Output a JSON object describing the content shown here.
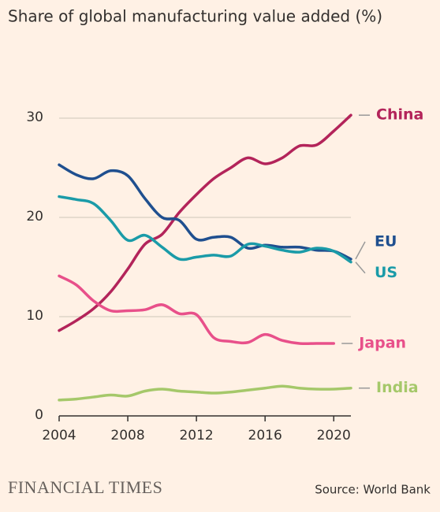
{
  "chart_data": {
    "type": "line",
    "title": "Share of global manufacturing value added (%)",
    "source": "Source: World Bank",
    "brand": "FINANCIAL TIMES",
    "x": [
      2004,
      2005,
      2006,
      2007,
      2008,
      2009,
      2010,
      2011,
      2012,
      2013,
      2014,
      2015,
      2016,
      2017,
      2018,
      2019,
      2020,
      2021
    ],
    "series": [
      {
        "name": "China",
        "color": "#b3245a",
        "values": [
          8.6,
          9.6,
          10.8,
          12.5,
          14.8,
          17.3,
          18.3,
          20.5,
          22.3,
          23.9,
          25.0,
          26.0,
          25.4,
          26.0,
          27.2,
          27.3,
          28.7,
          30.3
        ]
      },
      {
        "name": "EU",
        "color": "#1f4f8f",
        "values": [
          25.3,
          24.3,
          23.9,
          24.7,
          24.2,
          21.9,
          20.0,
          19.7,
          17.8,
          18.0,
          18.0,
          16.9,
          17.2,
          17.0,
          17.0,
          16.7,
          16.6,
          15.8
        ]
      },
      {
        "name": "US",
        "color": "#1a9ba8",
        "values": [
          22.1,
          21.8,
          21.4,
          19.7,
          17.7,
          18.2,
          17.0,
          15.8,
          16.0,
          16.2,
          16.1,
          17.3,
          17.1,
          16.7,
          16.5,
          16.9,
          16.6,
          15.5
        ]
      },
      {
        "name": "Japan",
        "color": "#e8508a",
        "values": [
          14.1,
          13.2,
          11.6,
          10.6,
          10.6,
          10.7,
          11.2,
          10.3,
          10.2,
          7.9,
          7.5,
          7.4,
          8.2,
          7.6,
          7.3,
          7.3,
          7.3,
          null
        ]
      },
      {
        "name": "India",
        "color": "#a5c86a",
        "values": [
          1.6,
          1.7,
          1.9,
          2.1,
          2.0,
          2.5,
          2.7,
          2.5,
          2.4,
          2.3,
          2.4,
          2.6,
          2.8,
          3.0,
          2.8,
          2.7,
          2.7,
          2.8
        ]
      }
    ],
    "xlim": [
      2004,
      2021
    ],
    "xticks": [
      2004,
      2008,
      2012,
      2016,
      2020
    ],
    "ylim": [
      0,
      30
    ],
    "yticks": [
      0,
      10,
      20,
      30
    ],
    "grid": true
  }
}
